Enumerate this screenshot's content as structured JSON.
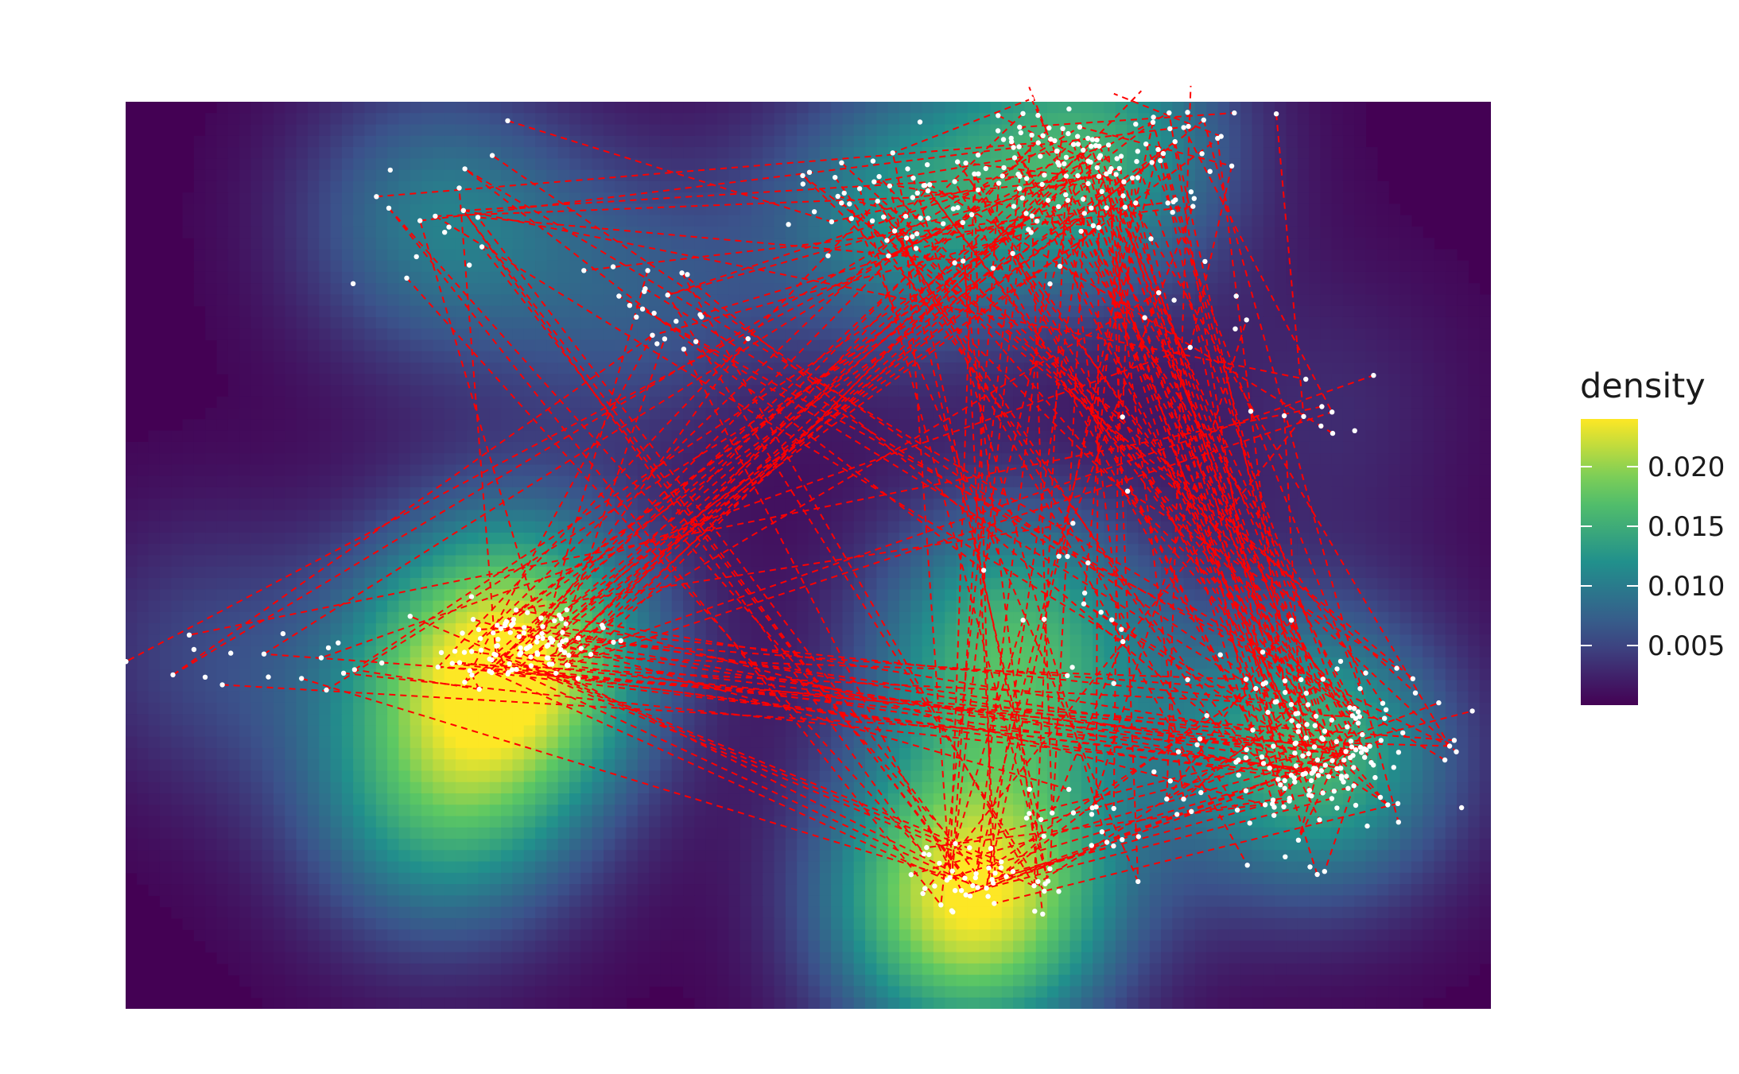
{
  "chart_data": {
    "type": "heatmap",
    "title": "",
    "xlabel": "",
    "ylabel": "",
    "grid": false,
    "xlim": [
      0,
      100
    ],
    "ylim": [
      0,
      100
    ],
    "density_fill": {
      "scale": "viridis",
      "palette": [
        "#440154",
        "#3b528b",
        "#21908c",
        "#5dc863",
        "#fde725"
      ],
      "range": [
        0,
        0.024
      ],
      "kernels": [
        {
          "x": 23,
          "y": 87,
          "peak": 0.01
        },
        {
          "x": 38,
          "y": 78,
          "peak": 0.006
        },
        {
          "x": 57,
          "y": 88,
          "peak": 0.011
        },
        {
          "x": 71,
          "y": 95,
          "peak": 0.014
        },
        {
          "x": 6,
          "y": 39,
          "peak": 0.005
        },
        {
          "x": 28,
          "y": 39,
          "peak": 0.023
        },
        {
          "x": 65,
          "y": 40,
          "peak": 0.016
        },
        {
          "x": 87,
          "y": 28,
          "peak": 0.016
        },
        {
          "x": 23,
          "y": 22,
          "peak": 0.012
        },
        {
          "x": 62,
          "y": 12,
          "peak": 0.024
        },
        {
          "x": 88,
          "y": 66,
          "peak": 0.003
        }
      ]
    },
    "points": {
      "color": "#ffffff",
      "clusters": [
        {
          "x": 23,
          "y": 86,
          "sd": [
            5,
            4
          ],
          "n": 18
        },
        {
          "x": 39,
          "y": 77,
          "sd": [
            3,
            3
          ],
          "n": 22
        },
        {
          "x": 57,
          "y": 88,
          "sd": [
            4,
            3
          ],
          "n": 55
        },
        {
          "x": 71,
          "y": 94,
          "sd": [
            5,
            4
          ],
          "n": 130
        },
        {
          "x": 7,
          "y": 39,
          "sd": [
            5,
            2
          ],
          "n": 18
        },
        {
          "x": 29,
          "y": 40,
          "sd": [
            3,
            2
          ],
          "n": 95
        },
        {
          "x": 70,
          "y": 43,
          "sd": [
            3,
            6
          ],
          "n": 18
        },
        {
          "x": 87,
          "y": 28,
          "sd": [
            4,
            5
          ],
          "n": 160
        },
        {
          "x": 72,
          "y": 22,
          "sd": [
            4,
            3
          ],
          "n": 25
        },
        {
          "x": 63,
          "y": 14,
          "sd": [
            3,
            2
          ],
          "n": 45
        },
        {
          "x": 87,
          "y": 66,
          "sd": [
            3,
            3
          ],
          "n": 10
        },
        {
          "x": 77,
          "y": 78,
          "sd": [
            4,
            5
          ],
          "n": 14
        }
      ]
    },
    "paths": {
      "color": "#ff0000",
      "style": "dashed",
      "segments": 260
    },
    "legend": {
      "title": "density",
      "position": "right",
      "ticks": [
        {
          "value": 0.005,
          "label": "0.005"
        },
        {
          "value": 0.01,
          "label": "0.010"
        },
        {
          "value": 0.015,
          "label": "0.015"
        },
        {
          "value": 0.02,
          "label": "0.020"
        }
      ]
    }
  }
}
